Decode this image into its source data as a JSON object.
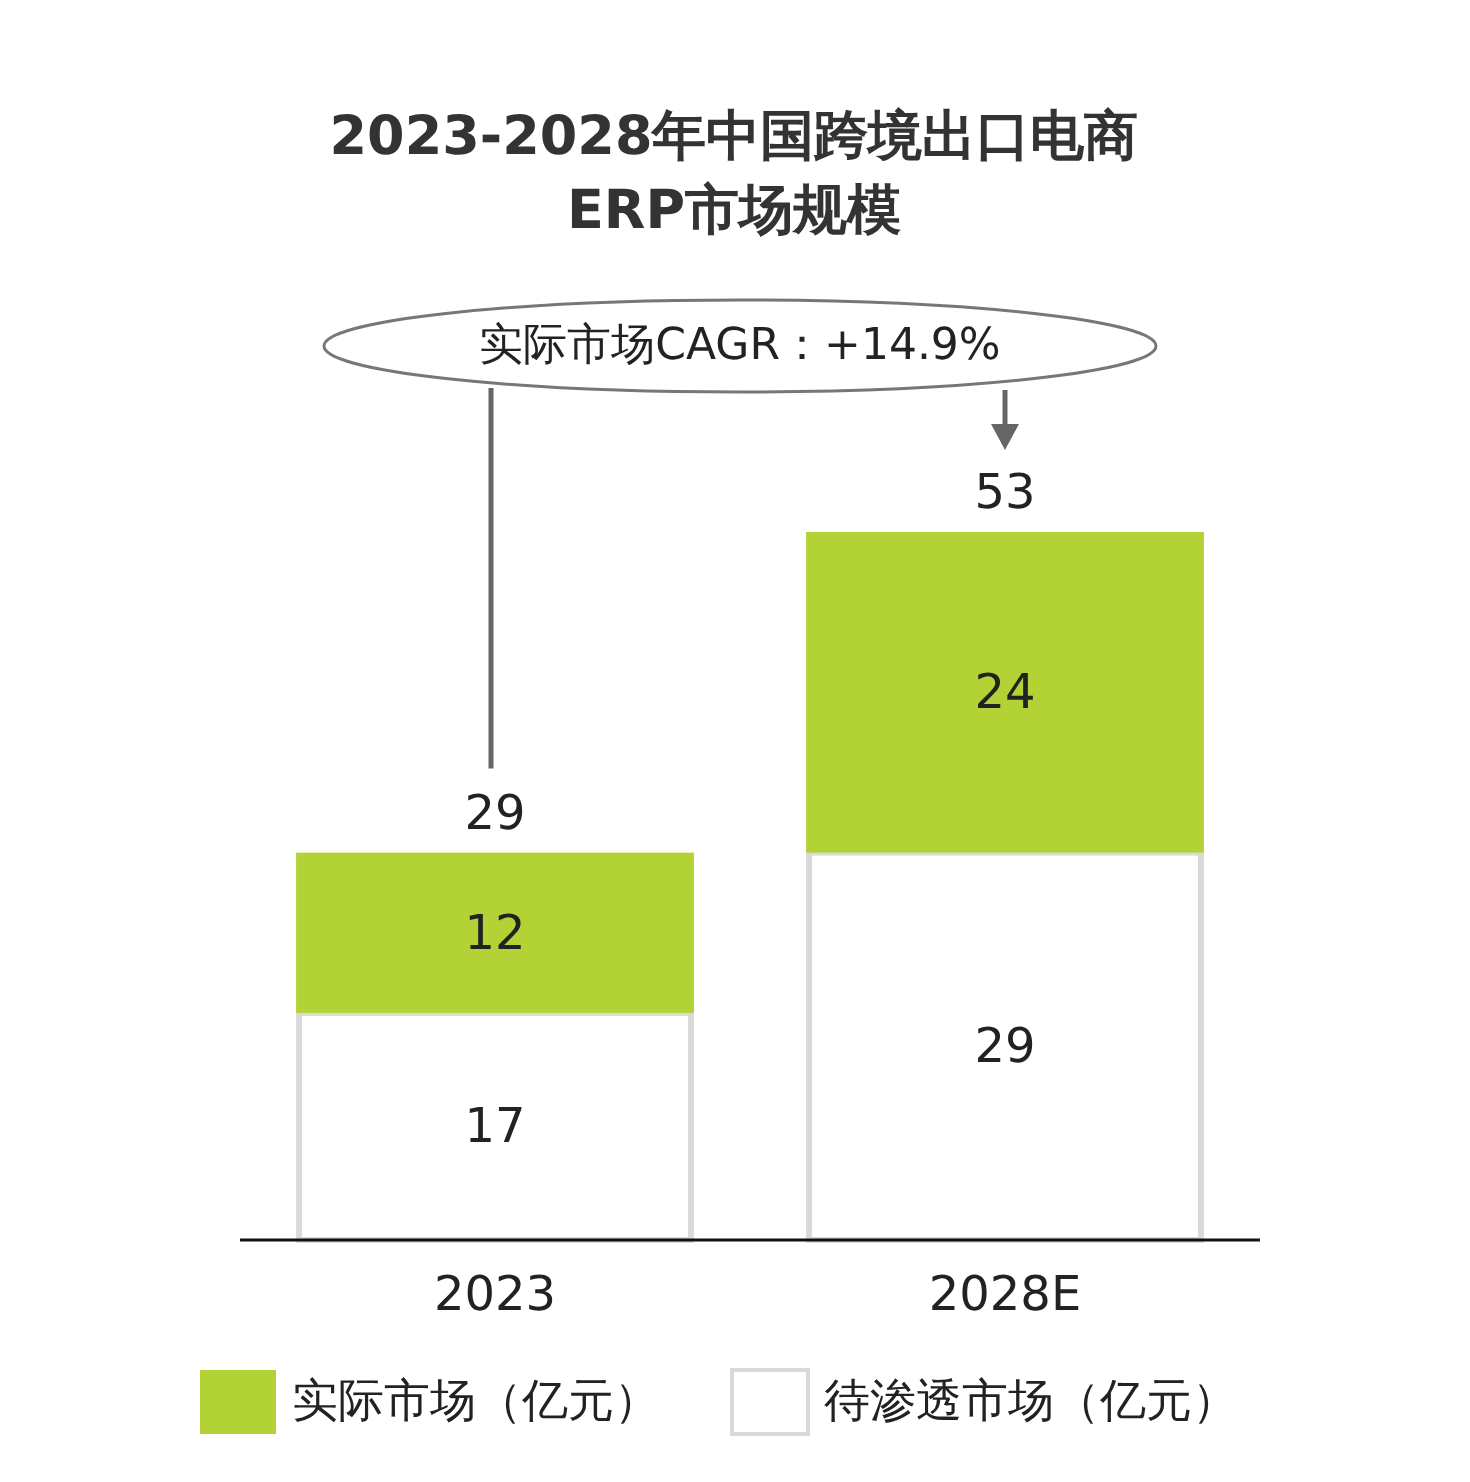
{
  "chart_data": {
    "type": "bar",
    "title": "2023-2028年中国跨境出口电商ERP市场规模",
    "categories": [
      "2023",
      "2028E"
    ],
    "stacked": true,
    "series": [
      {
        "name": "待渗透市场（亿元）",
        "color": "#ffffff",
        "values": [
          17,
          29
        ]
      },
      {
        "name": "实际市场（亿元）",
        "color": "#b2d235",
        "values": [
          12,
          24
        ]
      }
    ],
    "totals": [
      "29",
      "53"
    ],
    "data_labels": true,
    "legend": "bottom",
    "annotations": [
      "实际市场CAGR：+14.9%"
    ]
  }
}
